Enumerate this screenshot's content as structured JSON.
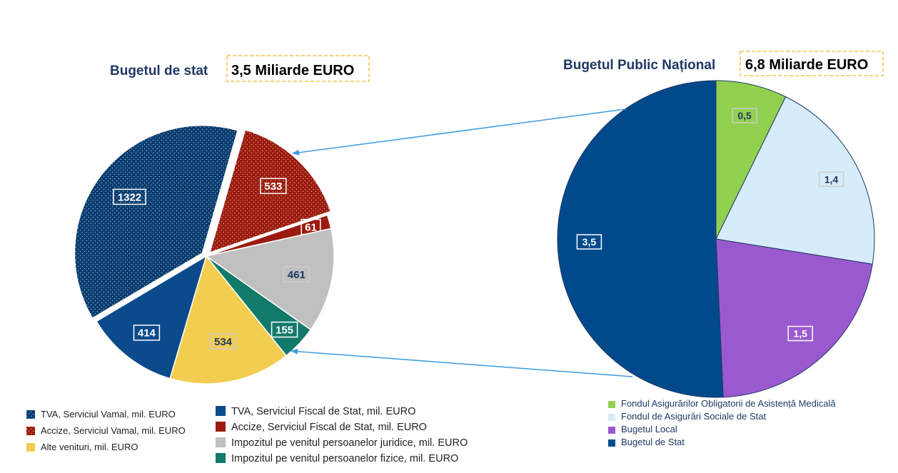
{
  "chart_data": [
    {
      "type": "pie",
      "title": "Bugetul de stat",
      "total_label": "3,5 Miliarde EURO",
      "slices": [
        {
          "label": "TVA, Serviciul Fiscal de Stat, mil. EURO",
          "value": 414,
          "display": "414",
          "color": "#0b4a8b",
          "pattern": "solid"
        },
        {
          "label": "TVA, Serviciul Vamal, mil. EURO",
          "value": 1322,
          "display": "1322",
          "color": "#0b3c6e",
          "pattern": "dots",
          "exploded": true
        },
        {
          "label": "Accize, Serviciul Vamal, mil. EURO",
          "value": 533,
          "display": "533",
          "color": "#9b1b0f",
          "pattern": "dots",
          "exploded": true
        },
        {
          "label": "Accize, Serviciul Fiscal de Stat, mil. EURO",
          "value": 61,
          "display": "61",
          "color": "#9b1b0f",
          "pattern": "solid"
        },
        {
          "label": "Impozitul pe venitul persoanelor juridice, mil. EURO",
          "value": 461,
          "display": "461",
          "color": "#c0c0c0",
          "pattern": "solid"
        },
        {
          "label": "Impozitul pe venitul persoanelor fizice, mil. EURO",
          "value": 155,
          "display": "155",
          "color": "#127a6b",
          "pattern": "solid"
        },
        {
          "label": "Alte venituri, mil. EURO",
          "value": 534,
          "display": "534",
          "color": "#f2cd4f",
          "pattern": "solid"
        }
      ],
      "legend_left": [
        {
          "label": "TVA, Serviciul Vamal, mil. EURO",
          "color": "#0b3c6e",
          "pattern": "dots"
        },
        {
          "label": "Accize, Serviciul Vamal, mil. EURO",
          "color": "#9b1b0f",
          "pattern": "dots"
        },
        {
          "label": "Alte venituri, mil. EURO",
          "color": "#f2cd4f",
          "pattern": "solid"
        }
      ],
      "legend_right": [
        {
          "label": "TVA, Serviciul Fiscal de Stat, mil. EURO",
          "color": "#0b4a8b"
        },
        {
          "label": "Accize, Serviciul Fiscal de Stat, mil. EURO",
          "color": "#9b1b0f"
        },
        {
          "label": "Impozitul pe venitul persoanelor juridice, mil. EURO",
          "color": "#c0c0c0"
        },
        {
          "label": "Impozitul pe venitul persoanelor fizice, mil. EURO",
          "color": "#127a6b"
        }
      ]
    },
    {
      "type": "pie",
      "title": "Bugetul Public Național",
      "total_label": "6,8 Miliarde EURO",
      "slices": [
        {
          "label": "Fondul Asigurărilor Obligatorii de Asistență Medicală",
          "value": 0.5,
          "display": "0,5",
          "color": "#92d050"
        },
        {
          "label": "Fondul de Asigurări Sociale de Stat",
          "value": 1.4,
          "display": "1,4",
          "color": "#d6ecfb"
        },
        {
          "label": "Bugetul Local",
          "value": 1.5,
          "display": "1,5",
          "color": "#9b59cf"
        },
        {
          "label": "Bugetul de Stat",
          "value": 3.5,
          "display": "3,5",
          "color": "#004a8c"
        }
      ],
      "legend": [
        {
          "label": "Fondul Asigurărilor Obligatorii de Asistență Medicală",
          "color": "#92d050"
        },
        {
          "label": "Fondul de Asigurări Sociale de Stat",
          "color": "#d6ecfb"
        },
        {
          "label": "Bugetul Local",
          "color": "#9b59cf"
        },
        {
          "label": "Bugetul de Stat",
          "color": "#004a8c"
        }
      ]
    }
  ],
  "colors": {
    "title_text": "#1f3864",
    "title_box_border": "#f0c24a",
    "arrow": "#3d9be0",
    "label_dark_text": "#1f3864"
  }
}
